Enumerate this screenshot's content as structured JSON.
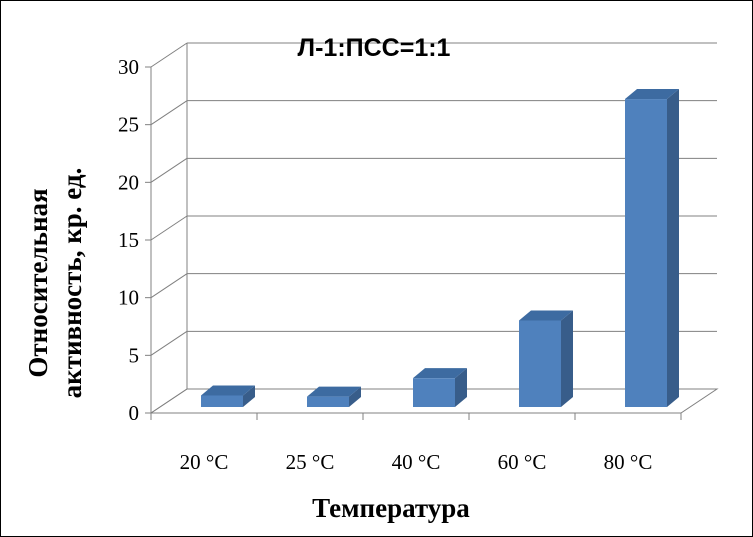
{
  "chart_data": {
    "type": "bar",
    "title": "Л-1:ПСС=1:1",
    "xlabel": "Температура",
    "ylabel_lines": [
      "Относительная",
      "активность, кр. ед."
    ],
    "categories": [
      "20 °C",
      "25 °C",
      "40 °C",
      "60 °C",
      "80 °C"
    ],
    "values": [
      1.0,
      0.9,
      2.5,
      7.5,
      26.7
    ],
    "ylim": [
      0,
      30
    ],
    "yticks": [
      0,
      5,
      10,
      15,
      20,
      25,
      30
    ],
    "grid": true,
    "legend": "none",
    "style": "3d-column",
    "colors": {
      "bar_front": "#4f81bd",
      "bar_side": "#385d8a",
      "bar_top": "#3d6ba1",
      "grid": "#808080",
      "text": "#000000"
    }
  }
}
